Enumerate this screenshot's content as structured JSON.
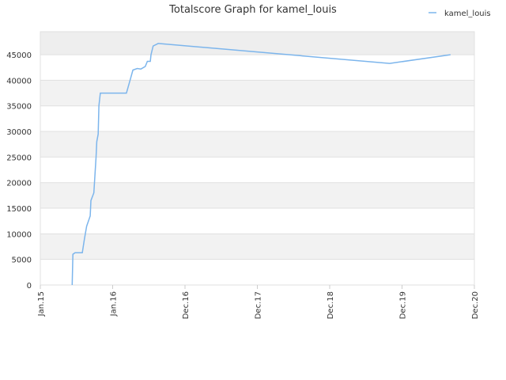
{
  "chart_data": {
    "type": "line",
    "title": "Totalscore Graph for kamel_louis",
    "x": [
      0.44,
      0.45,
      0.48,
      0.58,
      0.61,
      0.64,
      0.69,
      0.7,
      0.74,
      0.77,
      0.78,
      0.8,
      0.81,
      0.83,
      1.19,
      1.25,
      1.28,
      1.34,
      1.39,
      1.45,
      1.48,
      1.52,
      1.53,
      1.56,
      1.63,
      4.83,
      5.67
    ],
    "series": [
      {
        "name": "kamel_louis",
        "color": "#7cb5ec",
        "values": [
          0,
          6000,
          6300,
          6300,
          9000,
          11500,
          13500,
          16500,
          18000,
          25000,
          28000,
          29500,
          35000,
          37500,
          37500,
          40500,
          42000,
          42300,
          42200,
          42700,
          43700,
          43700,
          45000,
          46700,
          47200,
          43300,
          45000
        ]
      }
    ],
    "xlim": [
      0,
      6
    ],
    "xticks": [
      {
        "value": 0,
        "label": "Jan.15"
      },
      {
        "value": 1,
        "label": "Jan.16"
      },
      {
        "value": 2,
        "label": "Dec.16"
      },
      {
        "value": 3,
        "label": "Dec.17"
      },
      {
        "value": 4,
        "label": "Dec.18"
      },
      {
        "value": 5,
        "label": "Dec.19"
      },
      {
        "value": 6,
        "label": "Dec.20"
      }
    ],
    "ylim": [
      0,
      49500
    ],
    "yticks": [
      0,
      5000,
      10000,
      15000,
      20000,
      25000,
      30000,
      35000,
      40000,
      45000
    ],
    "legend": "top-right"
  }
}
